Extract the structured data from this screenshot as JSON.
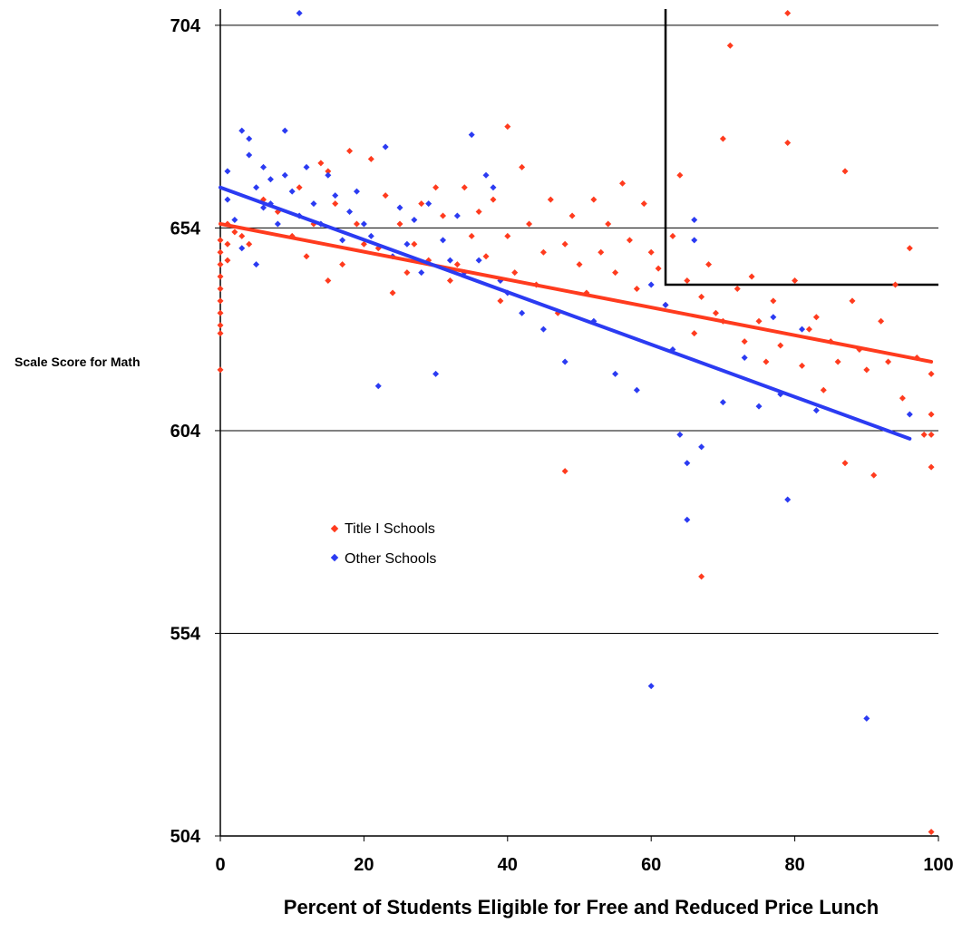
{
  "chart_data": {
    "type": "scatter",
    "xlabel": "Percent of Students Eligible for Free and Reduced Price Lunch",
    "ylabel": "Scale Score for Math",
    "xlim": [
      0,
      100
    ],
    "ylim": [
      504,
      708
    ],
    "x_ticks": [
      "0",
      "20",
      "40",
      "60",
      "80",
      "100"
    ],
    "y_ticks": [
      "504",
      "554",
      "604",
      "654",
      "704"
    ],
    "y_tick_values": [
      504,
      554,
      604,
      654,
      704
    ],
    "x_tick_values": [
      0,
      20,
      40,
      60,
      80,
      100
    ],
    "grid": "horizontal",
    "legend_position": "center-left",
    "reference_lines": [
      {
        "points": [
          [
            62,
            708
          ],
          [
            62,
            640
          ],
          [
            100,
            640
          ]
        ],
        "color": "#000000"
      }
    ],
    "series": [
      {
        "name": "Title I Schools",
        "color": "#ff3b1e",
        "trend": {
          "x": [
            0,
            99
          ],
          "y": [
            655,
            621
          ]
        },
        "points": [
          [
            0,
            651
          ],
          [
            0,
            648
          ],
          [
            0,
            645
          ],
          [
            0,
            642
          ],
          [
            0,
            639
          ],
          [
            0,
            636
          ],
          [
            0,
            633
          ],
          [
            0,
            630
          ],
          [
            0,
            628
          ],
          [
            0,
            619
          ],
          [
            1,
            655
          ],
          [
            1,
            650
          ],
          [
            1,
            646
          ],
          [
            2,
            653
          ],
          [
            3,
            652
          ],
          [
            4,
            650
          ],
          [
            6,
            661
          ],
          [
            8,
            658
          ],
          [
            10,
            652
          ],
          [
            11,
            664
          ],
          [
            12,
            647
          ],
          [
            13,
            655
          ],
          [
            14,
            670
          ],
          [
            15,
            668
          ],
          [
            15,
            641
          ],
          [
            16,
            660
          ],
          [
            17,
            645
          ],
          [
            18,
            673
          ],
          [
            19,
            655
          ],
          [
            20,
            650
          ],
          [
            21,
            671
          ],
          [
            22,
            649
          ],
          [
            23,
            662
          ],
          [
            24,
            638
          ],
          [
            25,
            655
          ],
          [
            26,
            643
          ],
          [
            27,
            650
          ],
          [
            28,
            660
          ],
          [
            29,
            646
          ],
          [
            30,
            664
          ],
          [
            31,
            657
          ],
          [
            32,
            641
          ],
          [
            33,
            645
          ],
          [
            34,
            664
          ],
          [
            35,
            652
          ],
          [
            36,
            658
          ],
          [
            37,
            647
          ],
          [
            38,
            661
          ],
          [
            39,
            636
          ],
          [
            40,
            679
          ],
          [
            40,
            652
          ],
          [
            41,
            643
          ],
          [
            42,
            669
          ],
          [
            43,
            655
          ],
          [
            44,
            640
          ],
          [
            45,
            648
          ],
          [
            46,
            661
          ],
          [
            47,
            633
          ],
          [
            48,
            594
          ],
          [
            48,
            650
          ],
          [
            49,
            657
          ],
          [
            50,
            645
          ],
          [
            51,
            638
          ],
          [
            52,
            661
          ],
          [
            53,
            648
          ],
          [
            54,
            655
          ],
          [
            55,
            643
          ],
          [
            56,
            665
          ],
          [
            57,
            651
          ],
          [
            58,
            639
          ],
          [
            59,
            660
          ],
          [
            60,
            648
          ],
          [
            61,
            644
          ],
          [
            62,
            635
          ],
          [
            63,
            652
          ],
          [
            64,
            667
          ],
          [
            65,
            641
          ],
          [
            66,
            628
          ],
          [
            67,
            637
          ],
          [
            67,
            568
          ],
          [
            68,
            645
          ],
          [
            69,
            633
          ],
          [
            70,
            631
          ],
          [
            70,
            676
          ],
          [
            71,
            699
          ],
          [
            72,
            639
          ],
          [
            73,
            626
          ],
          [
            74,
            642
          ],
          [
            75,
            631
          ],
          [
            76,
            621
          ],
          [
            77,
            636
          ],
          [
            78,
            625
          ],
          [
            79,
            707
          ],
          [
            79,
            675
          ],
          [
            80,
            641
          ],
          [
            81,
            620
          ],
          [
            82,
            629
          ],
          [
            83,
            632
          ],
          [
            84,
            614
          ],
          [
            85,
            626
          ],
          [
            86,
            621
          ],
          [
            87,
            668
          ],
          [
            87,
            596
          ],
          [
            88,
            636
          ],
          [
            89,
            624
          ],
          [
            90,
            619
          ],
          [
            91,
            593
          ],
          [
            92,
            631
          ],
          [
            93,
            621
          ],
          [
            94,
            640
          ],
          [
            95,
            612
          ],
          [
            96,
            649
          ],
          [
            97,
            622
          ],
          [
            98,
            603
          ],
          [
            99,
            618
          ],
          [
            99,
            608
          ],
          [
            99,
            595
          ],
          [
            99,
            603
          ],
          [
            99,
            505
          ]
        ]
      },
      {
        "name": "Other Schools",
        "color": "#2b3bf2",
        "trend": {
          "x": [
            0,
            96
          ],
          "y": [
            664,
            602
          ]
        },
        "points": [
          [
            1,
            668
          ],
          [
            1,
            661
          ],
          [
            2,
            656
          ],
          [
            3,
            649
          ],
          [
            3,
            678
          ],
          [
            4,
            676
          ],
          [
            4,
            672
          ],
          [
            5,
            664
          ],
          [
            5,
            645
          ],
          [
            6,
            669
          ],
          [
            6,
            659
          ],
          [
            7,
            660
          ],
          [
            7,
            666
          ],
          [
            8,
            655
          ],
          [
            9,
            678
          ],
          [
            9,
            667
          ],
          [
            10,
            663
          ],
          [
            11,
            707
          ],
          [
            11,
            657
          ],
          [
            12,
            669
          ],
          [
            13,
            660
          ],
          [
            14,
            655
          ],
          [
            15,
            667
          ],
          [
            16,
            662
          ],
          [
            17,
            651
          ],
          [
            18,
            658
          ],
          [
            19,
            663
          ],
          [
            20,
            655
          ],
          [
            21,
            652
          ],
          [
            22,
            615
          ],
          [
            23,
            674
          ],
          [
            24,
            647
          ],
          [
            25,
            659
          ],
          [
            26,
            650
          ],
          [
            27,
            656
          ],
          [
            28,
            643
          ],
          [
            29,
            660
          ],
          [
            30,
            618
          ],
          [
            31,
            651
          ],
          [
            32,
            646
          ],
          [
            33,
            657
          ],
          [
            34,
            643
          ],
          [
            35,
            677
          ],
          [
            36,
            646
          ],
          [
            37,
            667
          ],
          [
            38,
            664
          ],
          [
            39,
            641
          ],
          [
            40,
            638
          ],
          [
            42,
            633
          ],
          [
            45,
            629
          ],
          [
            48,
            621
          ],
          [
            52,
            631
          ],
          [
            55,
            618
          ],
          [
            58,
            614
          ],
          [
            60,
            640
          ],
          [
            60,
            541
          ],
          [
            62,
            635
          ],
          [
            63,
            624
          ],
          [
            64,
            603
          ],
          [
            65,
            596
          ],
          [
            65,
            582
          ],
          [
            66,
            656
          ],
          [
            66,
            651
          ],
          [
            67,
            600
          ],
          [
            70,
            611
          ],
          [
            73,
            622
          ],
          [
            75,
            610
          ],
          [
            77,
            632
          ],
          [
            78,
            613
          ],
          [
            79,
            587
          ],
          [
            81,
            629
          ],
          [
            83,
            609
          ],
          [
            90,
            533
          ],
          [
            96,
            608
          ]
        ]
      }
    ]
  }
}
